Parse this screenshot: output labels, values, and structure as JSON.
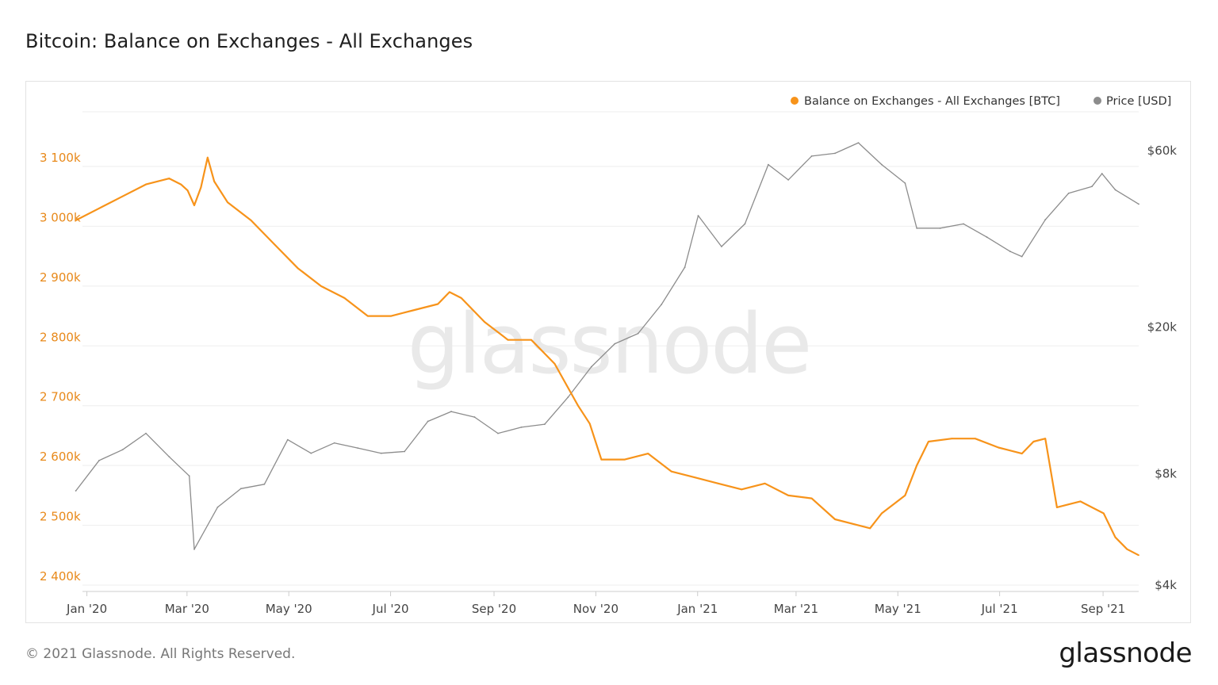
{
  "title": "Bitcoin: Balance on Exchanges - All Exchanges",
  "footer": {
    "copyright": "© 2021 Glassnode. All Rights Reserved.",
    "logo": "glassnode"
  },
  "watermark": "glassnode",
  "colors": {
    "balance": "#f7931a",
    "price": "#8c8c8c",
    "grid": "#eeeeee",
    "left_axis": "#e8891a",
    "right_axis": "#444444"
  },
  "chart_data": {
    "type": "line",
    "title": "Bitcoin: Balance on Exchanges - All Exchanges",
    "legend_position": "top-right",
    "grid": true,
    "x_ticks": [
      "Jan '20",
      "Mar '20",
      "May '20",
      "Jul '20",
      "Sep '20",
      "Nov '20",
      "Jan '21",
      "Mar '21",
      "May '21",
      "Jul '21",
      "Sep '21"
    ],
    "y_left": {
      "ticks": [
        "2 400k",
        "2 500k",
        "2 600k",
        "2 700k",
        "2 800k",
        "2 900k",
        "3 000k",
        "3 100k"
      ],
      "ylim": [
        2400000,
        3100000
      ]
    },
    "y_right": {
      "scale": "log",
      "ticks": [
        {
          "label": "$4k",
          "value": 4000
        },
        {
          "label": "$8k",
          "value": 8000
        },
        {
          "label": "$20k",
          "value": 20000
        },
        {
          "label": "$60k",
          "value": 60000
        }
      ]
    },
    "series": [
      {
        "name": "Balance on Exchanges - All Exchanges [BTC]",
        "axis": "left",
        "points": [
          [
            "2020-01-01",
            3010000
          ],
          [
            "2020-01-15",
            3030000
          ],
          [
            "2020-01-29",
            3050000
          ],
          [
            "2020-02-12",
            3070000
          ],
          [
            "2020-02-26",
            3080000
          ],
          [
            "2020-03-04",
            3070000
          ],
          [
            "2020-03-08",
            3060000
          ],
          [
            "2020-03-12",
            3035000
          ],
          [
            "2020-03-16",
            3065000
          ],
          [
            "2020-03-20",
            3115000
          ],
          [
            "2020-03-24",
            3075000
          ],
          [
            "2020-04-01",
            3040000
          ],
          [
            "2020-04-15",
            3010000
          ],
          [
            "2020-04-29",
            2970000
          ],
          [
            "2020-05-13",
            2930000
          ],
          [
            "2020-05-27",
            2900000
          ],
          [
            "2020-06-10",
            2880000
          ],
          [
            "2020-06-24",
            2850000
          ],
          [
            "2020-07-08",
            2850000
          ],
          [
            "2020-07-22",
            2860000
          ],
          [
            "2020-08-05",
            2870000
          ],
          [
            "2020-08-12",
            2890000
          ],
          [
            "2020-08-19",
            2880000
          ],
          [
            "2020-09-02",
            2840000
          ],
          [
            "2020-09-16",
            2810000
          ],
          [
            "2020-09-30",
            2810000
          ],
          [
            "2020-10-14",
            2770000
          ],
          [
            "2020-10-28",
            2700000
          ],
          [
            "2020-11-04",
            2670000
          ],
          [
            "2020-11-11",
            2610000
          ],
          [
            "2020-11-25",
            2610000
          ],
          [
            "2020-12-09",
            2620000
          ],
          [
            "2020-12-23",
            2590000
          ],
          [
            "2021-01-06",
            2580000
          ],
          [
            "2021-01-20",
            2570000
          ],
          [
            "2021-02-03",
            2560000
          ],
          [
            "2021-02-17",
            2570000
          ],
          [
            "2021-03-03",
            2550000
          ],
          [
            "2021-03-17",
            2545000
          ],
          [
            "2021-03-31",
            2510000
          ],
          [
            "2021-04-14",
            2500000
          ],
          [
            "2021-04-21",
            2495000
          ],
          [
            "2021-04-28",
            2520000
          ],
          [
            "2021-05-12",
            2550000
          ],
          [
            "2021-05-19",
            2600000
          ],
          [
            "2021-05-26",
            2640000
          ],
          [
            "2021-06-09",
            2645000
          ],
          [
            "2021-06-23",
            2645000
          ],
          [
            "2021-07-07",
            2630000
          ],
          [
            "2021-07-21",
            2620000
          ],
          [
            "2021-07-28",
            2640000
          ],
          [
            "2021-08-04",
            2645000
          ],
          [
            "2021-08-11",
            2530000
          ],
          [
            "2021-08-25",
            2540000
          ],
          [
            "2021-09-08",
            2520000
          ],
          [
            "2021-09-15",
            2480000
          ],
          [
            "2021-09-22",
            2460000
          ],
          [
            "2021-09-29",
            2450000
          ]
        ]
      },
      {
        "name": "Price [USD]",
        "axis": "right",
        "points": [
          [
            "2020-01-01",
            7200
          ],
          [
            "2020-01-15",
            8700
          ],
          [
            "2020-01-29",
            9300
          ],
          [
            "2020-02-12",
            10300
          ],
          [
            "2020-02-26",
            8900
          ],
          [
            "2020-03-09",
            7900
          ],
          [
            "2020-03-12",
            5000
          ],
          [
            "2020-03-26",
            6500
          ],
          [
            "2020-04-09",
            7300
          ],
          [
            "2020-04-23",
            7500
          ],
          [
            "2020-05-07",
            9900
          ],
          [
            "2020-05-21",
            9100
          ],
          [
            "2020-06-04",
            9700
          ],
          [
            "2020-06-18",
            9400
          ],
          [
            "2020-07-02",
            9100
          ],
          [
            "2020-07-16",
            9200
          ],
          [
            "2020-07-30",
            11100
          ],
          [
            "2020-08-13",
            11800
          ],
          [
            "2020-08-27",
            11400
          ],
          [
            "2020-09-10",
            10300
          ],
          [
            "2020-09-24",
            10700
          ],
          [
            "2020-10-08",
            10900
          ],
          [
            "2020-10-22",
            12900
          ],
          [
            "2020-11-05",
            15600
          ],
          [
            "2020-11-19",
            18000
          ],
          [
            "2020-12-03",
            19200
          ],
          [
            "2020-12-17",
            23000
          ],
          [
            "2020-12-31",
            29000
          ],
          [
            "2021-01-08",
            40000
          ],
          [
            "2021-01-22",
            33000
          ],
          [
            "2021-02-05",
            38000
          ],
          [
            "2021-02-19",
            55000
          ],
          [
            "2021-03-03",
            50000
          ],
          [
            "2021-03-17",
            58000
          ],
          [
            "2021-03-31",
            59000
          ],
          [
            "2021-04-14",
            63000
          ],
          [
            "2021-04-28",
            55000
          ],
          [
            "2021-05-12",
            49000
          ],
          [
            "2021-05-19",
            37000
          ],
          [
            "2021-06-02",
            37000
          ],
          [
            "2021-06-16",
            38000
          ],
          [
            "2021-06-30",
            35000
          ],
          [
            "2021-07-14",
            32000
          ],
          [
            "2021-07-21",
            31000
          ],
          [
            "2021-08-04",
            39000
          ],
          [
            "2021-08-18",
            46000
          ],
          [
            "2021-09-01",
            48000
          ],
          [
            "2021-09-07",
            52000
          ],
          [
            "2021-09-15",
            47000
          ],
          [
            "2021-09-29",
            43000
          ]
        ]
      }
    ]
  }
}
